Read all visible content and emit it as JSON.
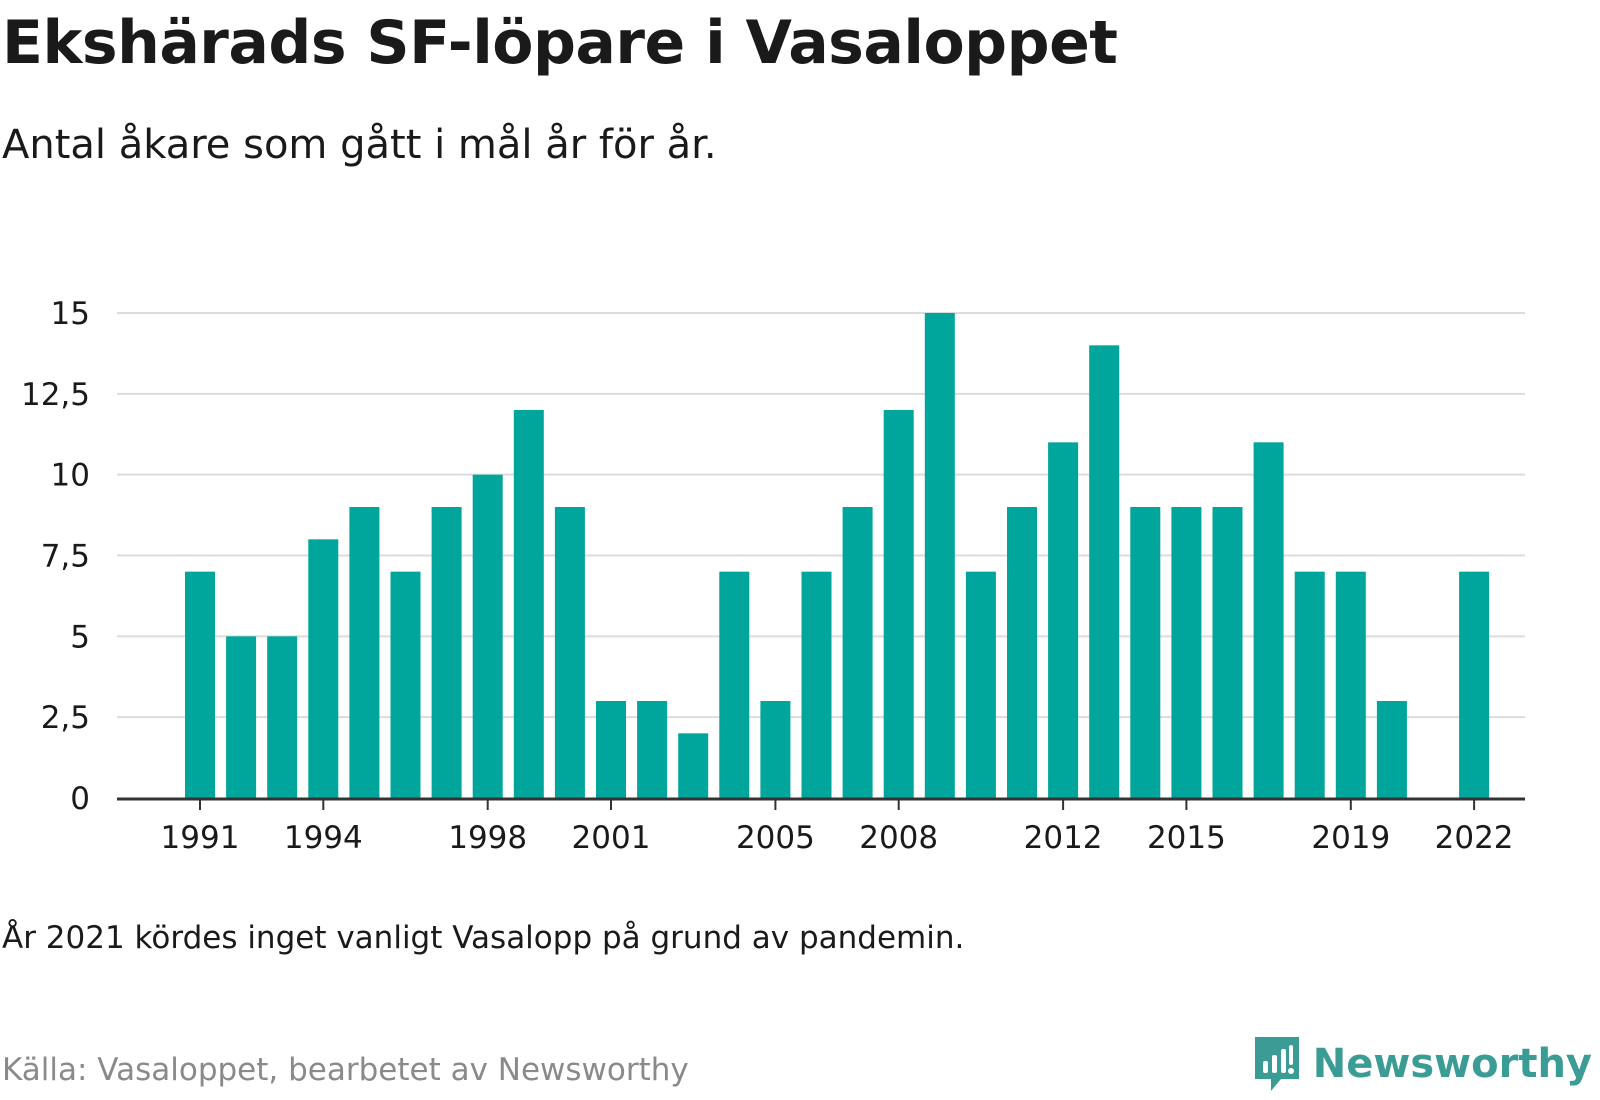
{
  "header": {
    "title": "Ekshärads SF-löpare i Vasaloppet",
    "subtitle": "Antal åkare som gått i mål år för år."
  },
  "footer": {
    "note": "År 2021 kördes inget vanligt Vasalopp på grund av pandemin.",
    "source": "Källa: Vasaloppet, bearbetet av Newsworthy",
    "brand": "Newsworthy",
    "brand_icon": "newsworthy-logo-icon"
  },
  "colors": {
    "bar": "#00a59b",
    "grid": "#dcdcdc",
    "axis": "#333333",
    "brand": "#3a9c94"
  },
  "chart_data": {
    "type": "bar",
    "title": "Ekshärads SF-löpare i Vasaloppet",
    "subtitle": "Antal åkare som gått i mål år för år.",
    "xlabel": "",
    "ylabel": "",
    "categories": [
      1991,
      1992,
      1993,
      1994,
      1995,
      1996,
      1997,
      1998,
      1999,
      2000,
      2001,
      2002,
      2003,
      2004,
      2005,
      2006,
      2007,
      2008,
      2009,
      2010,
      2011,
      2012,
      2013,
      2014,
      2015,
      2016,
      2017,
      2018,
      2019,
      2020,
      2021,
      2022
    ],
    "values": [
      7,
      5,
      5,
      8,
      9,
      7,
      9,
      10,
      12,
      9,
      3,
      3,
      2,
      7,
      3,
      7,
      9,
      12,
      15,
      7,
      9,
      11,
      14,
      9,
      9,
      9,
      11,
      7,
      7,
      3,
      null,
      7
    ],
    "x_tick_labels": [
      "1991",
      "1994",
      "1998",
      "2001",
      "2005",
      "2008",
      "2012",
      "2015",
      "2019",
      "2022"
    ],
    "y_tick_labels": [
      "0",
      "2,5",
      "5",
      "7,5",
      "10",
      "12,5",
      "15"
    ],
    "y_ticks": [
      0,
      2.5,
      5,
      7.5,
      10,
      12.5,
      15
    ],
    "ylim": [
      0,
      15
    ],
    "grid": true,
    "legend": "none"
  }
}
